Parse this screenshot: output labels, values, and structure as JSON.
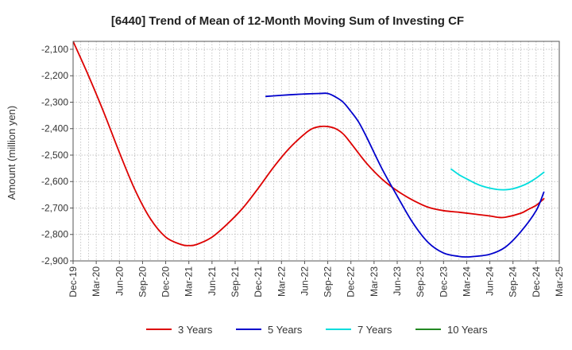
{
  "chart_data": {
    "type": "line",
    "title": "[6440]  Trend of Mean of 12-Month Moving Sum of Investing CF",
    "xlabel": "",
    "ylabel": "Amount (million yen)",
    "ylim": [
      -2900,
      -2070
    ],
    "yticks": [
      -2100,
      -2200,
      -2300,
      -2400,
      -2500,
      -2600,
      -2700,
      -2800,
      -2900
    ],
    "ytick_labels": [
      "-2,100",
      "-2,200",
      "-2,300",
      "-2,400",
      "-2,500",
      "-2,600",
      "-2,700",
      "-2,800",
      "-2,900"
    ],
    "x_range_months": [
      0,
      63
    ],
    "xticks": [
      {
        "label": "Dec-19",
        "month": 0
      },
      {
        "label": "Mar-20",
        "month": 3
      },
      {
        "label": "Jun-20",
        "month": 6
      },
      {
        "label": "Sep-20",
        "month": 9
      },
      {
        "label": "Dec-20",
        "month": 12
      },
      {
        "label": "Mar-21",
        "month": 15
      },
      {
        "label": "Jun-21",
        "month": 18
      },
      {
        "label": "Sep-21",
        "month": 21
      },
      {
        "label": "Dec-21",
        "month": 24
      },
      {
        "label": "Mar-22",
        "month": 27
      },
      {
        "label": "Jun-22",
        "month": 30
      },
      {
        "label": "Sep-22",
        "month": 33
      },
      {
        "label": "Dec-22",
        "month": 36
      },
      {
        "label": "Mar-23",
        "month": 39
      },
      {
        "label": "Jun-23",
        "month": 42
      },
      {
        "label": "Sep-23",
        "month": 45
      },
      {
        "label": "Dec-23",
        "month": 48
      },
      {
        "label": "Mar-24",
        "month": 51
      },
      {
        "label": "Jun-24",
        "month": 54
      },
      {
        "label": "Sep-24",
        "month": 57
      },
      {
        "label": "Dec-24",
        "month": 60
      },
      {
        "label": "Mar-25",
        "month": 63
      }
    ],
    "grid": true,
    "legend_position": "bottom",
    "series": [
      {
        "name": "3 Years",
        "color": "#dd0000",
        "points": [
          [
            0,
            -2070
          ],
          [
            2,
            -2200
          ],
          [
            4,
            -2340
          ],
          [
            6,
            -2490
          ],
          [
            8,
            -2630
          ],
          [
            10,
            -2740
          ],
          [
            12,
            -2810
          ],
          [
            14,
            -2838
          ],
          [
            15,
            -2842
          ],
          [
            16,
            -2838
          ],
          [
            18,
            -2810
          ],
          [
            20,
            -2760
          ],
          [
            22,
            -2700
          ],
          [
            24,
            -2625
          ],
          [
            26,
            -2545
          ],
          [
            28,
            -2475
          ],
          [
            30,
            -2420
          ],
          [
            31,
            -2400
          ],
          [
            32,
            -2392
          ],
          [
            33,
            -2392
          ],
          [
            34,
            -2400
          ],
          [
            35,
            -2420
          ],
          [
            36,
            -2455
          ],
          [
            38,
            -2530
          ],
          [
            40,
            -2590
          ],
          [
            42,
            -2635
          ],
          [
            44,
            -2670
          ],
          [
            46,
            -2697
          ],
          [
            48,
            -2710
          ],
          [
            50,
            -2716
          ],
          [
            52,
            -2723
          ],
          [
            54,
            -2730
          ],
          [
            55,
            -2735
          ],
          [
            56,
            -2735
          ],
          [
            58,
            -2720
          ],
          [
            59,
            -2705
          ],
          [
            60,
            -2690
          ],
          [
            61,
            -2665
          ]
        ]
      },
      {
        "name": "5 Years",
        "color": "#0000cc",
        "points": [
          [
            25,
            -2278
          ],
          [
            26,
            -2276
          ],
          [
            28,
            -2272
          ],
          [
            30,
            -2269
          ],
          [
            32,
            -2267
          ],
          [
            33,
            -2267
          ],
          [
            34,
            -2280
          ],
          [
            35,
            -2300
          ],
          [
            36,
            -2335
          ],
          [
            37,
            -2375
          ],
          [
            38,
            -2430
          ],
          [
            40,
            -2550
          ],
          [
            42,
            -2655
          ],
          [
            44,
            -2755
          ],
          [
            46,
            -2830
          ],
          [
            48,
            -2870
          ],
          [
            50,
            -2883
          ],
          [
            51,
            -2885
          ],
          [
            52,
            -2883
          ],
          [
            54,
            -2875
          ],
          [
            56,
            -2848
          ],
          [
            58,
            -2790
          ],
          [
            60,
            -2710
          ],
          [
            61,
            -2640
          ]
        ]
      },
      {
        "name": "7 Years",
        "color": "#00dddd",
        "points": [
          [
            49,
            -2553
          ],
          [
            50,
            -2574
          ],
          [
            51,
            -2590
          ],
          [
            52,
            -2605
          ],
          [
            53,
            -2617
          ],
          [
            54,
            -2625
          ],
          [
            55,
            -2630
          ],
          [
            56,
            -2631
          ],
          [
            57,
            -2627
          ],
          [
            58,
            -2618
          ],
          [
            59,
            -2605
          ],
          [
            60,
            -2587
          ],
          [
            61,
            -2565
          ]
        ]
      },
      {
        "name": "10 Years",
        "color": "#228822",
        "points": []
      }
    ]
  }
}
